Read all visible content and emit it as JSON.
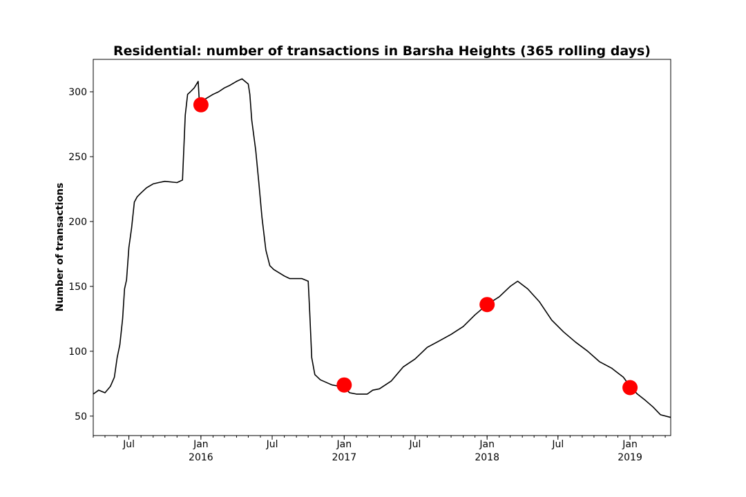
{
  "chart_data": {
    "type": "line",
    "title": "Residential: number of transactions in Barsha Heights (365 rolling days)",
    "xlabel": "",
    "ylabel": "Number of transactions",
    "xlim": [
      "2015-04-01",
      "2019-04-15"
    ],
    "ylim": [
      35,
      325
    ],
    "y_ticks": [
      50,
      100,
      150,
      200,
      250,
      300
    ],
    "x_ticks": [
      {
        "date": "2015-07-01",
        "label": "Jul",
        "year": ""
      },
      {
        "date": "2016-01-01",
        "label": "Jan",
        "year": "2016"
      },
      {
        "date": "2016-07-01",
        "label": "Jul",
        "year": ""
      },
      {
        "date": "2017-01-01",
        "label": "Jan",
        "year": "2017"
      },
      {
        "date": "2017-07-01",
        "label": "Jul",
        "year": ""
      },
      {
        "date": "2018-01-01",
        "label": "Jan",
        "year": "2018"
      },
      {
        "date": "2018-07-01",
        "label": "Jul",
        "year": ""
      },
      {
        "date": "2019-01-01",
        "label": "Jan",
        "year": "2019"
      }
    ],
    "grid": false,
    "series": [
      {
        "color": "#000000",
        "points": [
          [
            "2015-04-01",
            67
          ],
          [
            "2015-04-15",
            70
          ],
          [
            "2015-05-01",
            68
          ],
          [
            "2015-05-15",
            73
          ],
          [
            "2015-05-25",
            80
          ],
          [
            "2015-06-01",
            95
          ],
          [
            "2015-06-08",
            105
          ],
          [
            "2015-06-15",
            125
          ],
          [
            "2015-06-20",
            148
          ],
          [
            "2015-06-25",
            155
          ],
          [
            "2015-07-01",
            180
          ],
          [
            "2015-07-08",
            195
          ],
          [
            "2015-07-15",
            215
          ],
          [
            "2015-07-22",
            219
          ],
          [
            "2015-08-01",
            222
          ],
          [
            "2015-08-15",
            226
          ],
          [
            "2015-09-01",
            229
          ],
          [
            "2015-09-15",
            230
          ],
          [
            "2015-10-01",
            231
          ],
          [
            "2015-11-01",
            230
          ],
          [
            "2015-11-15",
            232
          ],
          [
            "2015-11-22",
            282
          ],
          [
            "2015-11-28",
            298
          ],
          [
            "2015-12-05",
            300
          ],
          [
            "2015-12-15",
            303
          ],
          [
            "2015-12-25",
            308
          ],
          [
            "2015-12-28",
            292
          ],
          [
            "2016-01-15",
            295
          ],
          [
            "2016-02-01",
            298
          ],
          [
            "2016-02-15",
            300
          ],
          [
            "2016-03-01",
            303
          ],
          [
            "2016-03-15",
            305
          ],
          [
            "2016-04-01",
            308
          ],
          [
            "2016-04-15",
            310
          ],
          [
            "2016-05-01",
            306
          ],
          [
            "2016-05-05",
            298
          ],
          [
            "2016-05-10",
            278
          ],
          [
            "2016-05-20",
            255
          ],
          [
            "2016-05-28",
            230
          ],
          [
            "2016-06-05",
            203
          ],
          [
            "2016-06-15",
            178
          ],
          [
            "2016-06-25",
            166
          ],
          [
            "2016-07-05",
            163
          ],
          [
            "2016-08-01",
            158
          ],
          [
            "2016-08-15",
            156
          ],
          [
            "2016-09-15",
            156
          ],
          [
            "2016-10-01",
            154
          ],
          [
            "2016-10-05",
            130
          ],
          [
            "2016-10-10",
            95
          ],
          [
            "2016-10-18",
            82
          ],
          [
            "2016-11-01",
            78
          ],
          [
            "2016-12-01",
            74
          ],
          [
            "2016-12-20",
            73
          ],
          [
            "2017-01-01",
            72
          ],
          [
            "2017-01-15",
            68
          ],
          [
            "2017-02-01",
            67
          ],
          [
            "2017-03-01",
            67
          ],
          [
            "2017-03-15",
            70
          ],
          [
            "2017-04-01",
            71
          ],
          [
            "2017-05-01",
            77
          ],
          [
            "2017-05-15",
            82
          ],
          [
            "2017-06-01",
            88
          ],
          [
            "2017-07-01",
            94
          ],
          [
            "2017-08-01",
            103
          ],
          [
            "2017-09-01",
            108
          ],
          [
            "2017-10-01",
            113
          ],
          [
            "2017-11-01",
            119
          ],
          [
            "2017-12-01",
            128
          ],
          [
            "2018-01-01",
            136
          ],
          [
            "2018-02-01",
            142
          ],
          [
            "2018-03-01",
            150
          ],
          [
            "2018-03-20",
            154
          ],
          [
            "2018-04-15",
            148
          ],
          [
            "2018-05-15",
            138
          ],
          [
            "2018-06-15",
            124
          ],
          [
            "2018-07-15",
            115
          ],
          [
            "2018-08-15",
            107
          ],
          [
            "2018-09-15",
            100
          ],
          [
            "2018-10-15",
            92
          ],
          [
            "2018-11-15",
            87
          ],
          [
            "2018-12-15",
            80
          ],
          [
            "2019-01-01",
            73
          ],
          [
            "2019-01-20",
            67
          ],
          [
            "2019-02-10",
            62
          ],
          [
            "2019-03-01",
            57
          ],
          [
            "2019-03-20",
            51
          ],
          [
            "2019-04-15",
            49
          ]
        ]
      }
    ],
    "markers": {
      "color": "#ff0000",
      "points": [
        [
          "2016-01-01",
          290
        ],
        [
          "2017-01-01",
          74
        ],
        [
          "2018-01-01",
          136
        ],
        [
          "2019-01-01",
          72
        ]
      ]
    }
  }
}
